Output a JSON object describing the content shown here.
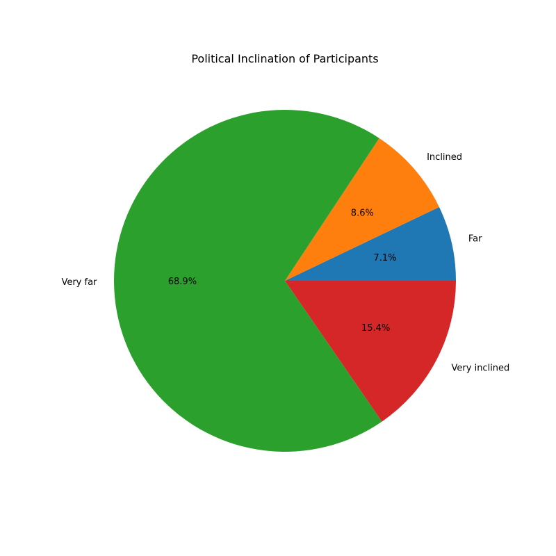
{
  "chart_data": {
    "type": "pie",
    "title": "Political Inclination of Participants",
    "start_angle_deg": 0,
    "direction": "counterclockwise",
    "slices": [
      {
        "label": "Far",
        "value": 7.1,
        "pct_text": "7.1%",
        "color": "#1f77b4"
      },
      {
        "label": "Inclined",
        "value": 8.6,
        "pct_text": "8.6%",
        "color": "#ff7f0e"
      },
      {
        "label": "Very far",
        "value": 68.9,
        "pct_text": "68.9%",
        "color": "#2ca02c"
      },
      {
        "label": "Very inclined",
        "value": 15.4,
        "pct_text": "15.4%",
        "color": "#d62728"
      }
    ]
  }
}
